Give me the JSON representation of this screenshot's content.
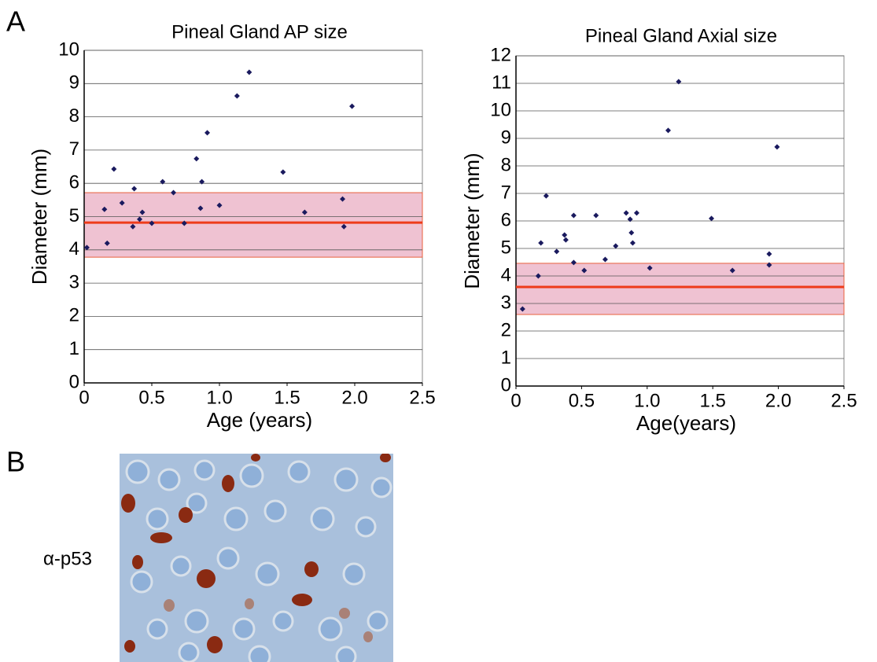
{
  "panel_labels": [
    "A",
    "B"
  ],
  "image_label": "α-p53",
  "chart_data": [
    {
      "type": "scatter",
      "title": "Pineal Gland AP size",
      "x_label": "Age (years)",
      "y_label": "Diameter (mm)",
      "series": [
        {
          "name": "Pineal Gland AP size",
          "color": "#1a1a5e",
          "x": [
            0.02,
            0.15,
            0.17,
            0.22,
            0.28,
            0.37,
            0.36,
            0.41,
            0.43,
            0.5,
            0.58,
            0.66,
            0.74,
            0.83,
            0.86,
            0.87,
            0.91,
            1.0,
            1.13,
            1.22,
            1.47,
            1.63,
            1.91,
            1.92,
            1.98
          ],
          "values": [
            4.07,
            5.22,
            4.2,
            6.43,
            5.41,
            5.84,
            4.7,
            4.92,
            5.13,
            4.8,
            6.05,
            5.72,
            4.8,
            6.74,
            5.25,
            6.05,
            7.52,
            5.34,
            8.63,
            9.34,
            6.34,
            5.13,
            5.53,
            4.7,
            8.32
          ]
        }
      ],
      "reference_line": 4.82,
      "reference_line_color": "#ee3b1a",
      "reference_band": [
        3.78,
        5.72
      ],
      "reference_band_color": "#efc2d2",
      "xlim": [
        0,
        2.5
      ],
      "xticks": [
        0,
        0.5,
        {
          "value": 1,
          "label": "1.0"
        },
        1.5,
        {
          "value": 2,
          "label": "2.0"
        },
        2.5
      ],
      "ylim": [
        0,
        10
      ],
      "yticks": [
        0,
        1,
        2,
        3,
        4,
        5,
        6,
        7,
        8,
        9,
        10
      ],
      "grid": true
    },
    {
      "type": "scatter",
      "title": "Pineal Gland Axial size",
      "x_label": "Age(years)",
      "y_label": "Diameter (mm)",
      "series": [
        {
          "name": "Pineal Gland Axial size",
          "color": "#1a1a5e",
          "x": [
            0.05,
            0.17,
            0.19,
            0.23,
            0.31,
            0.37,
            0.38,
            0.44,
            0.44,
            0.52,
            0.61,
            0.68,
            0.76,
            0.84,
            0.87,
            0.88,
            0.89,
            0.92,
            1.02,
            1.16,
            1.24,
            1.49,
            1.65,
            1.93,
            1.93,
            1.99
          ],
          "values": [
            2.8,
            4.0,
            5.2,
            6.91,
            4.89,
            5.49,
            5.31,
            4.49,
            6.2,
            4.2,
            6.2,
            4.6,
            5.09,
            6.29,
            6.06,
            5.57,
            5.2,
            6.29,
            4.29,
            9.29,
            11.06,
            6.09,
            4.2,
            4.4,
            4.8,
            8.69
          ]
        }
      ],
      "reference_line": 3.6,
      "reference_line_color": "#ee3b1a",
      "reference_band": [
        2.6,
        4.46
      ],
      "reference_band_color": "#efc2d2",
      "xlim": [
        0,
        2.5
      ],
      "xticks": [
        0,
        0.5,
        {
          "value": 1,
          "label": "1.0"
        },
        1.5,
        {
          "value": 2,
          "label": "2.0"
        },
        2.5
      ],
      "ylim": [
        0,
        12
      ],
      "yticks": [
        0,
        1,
        2,
        3,
        4,
        5,
        6,
        7,
        8,
        9,
        10,
        11,
        12
      ],
      "grid": true
    }
  ]
}
